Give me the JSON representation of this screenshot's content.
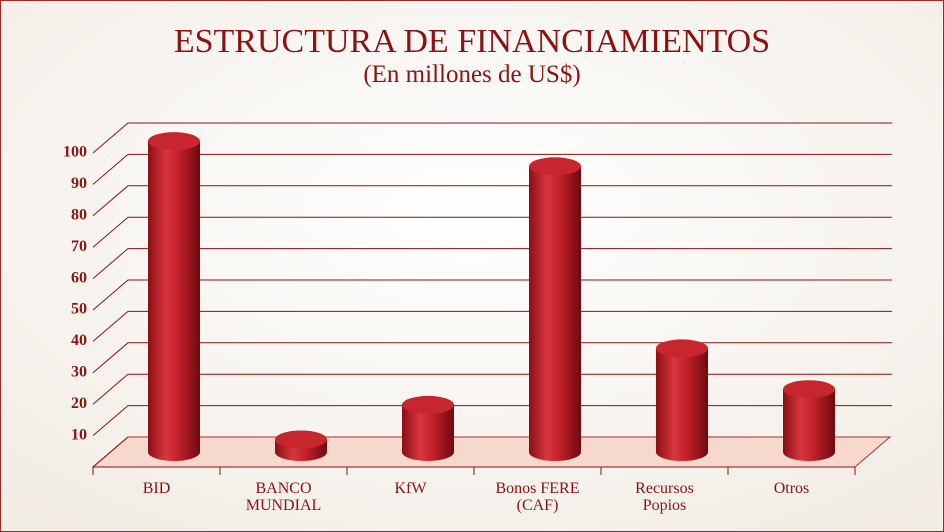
{
  "chart_data": {
    "type": "bar3d",
    "title": "ESTRUCTURA DE FINANCIAMIENTOS",
    "subtitle": "(En millones de US$)",
    "categories": [
      [
        "BID"
      ],
      [
        "BANCO",
        "MUNDIAL"
      ],
      [
        "KfW"
      ],
      [
        "Bonos FERE",
        "(CAF)"
      ],
      [
        "Recursos",
        "Popios"
      ],
      [
        "Otros"
      ]
    ],
    "values": [
      99,
      4,
      15,
      91,
      33,
      20
    ],
    "color": "#c0202a",
    "ylim": [
      0,
      100
    ],
    "yticks": [
      10,
      20,
      30,
      40,
      50,
      60,
      70,
      80,
      90,
      100
    ],
    "grid": true
  }
}
